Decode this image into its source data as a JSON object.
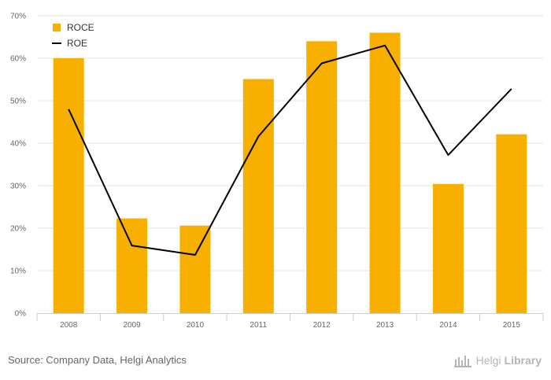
{
  "colors": {
    "bar": "#F7B000",
    "line": "#000000",
    "grid": "#e6e6e6",
    "axis": "#cccccc"
  },
  "chart_data": {
    "type": "bar",
    "categories": [
      "2008",
      "2009",
      "2010",
      "2011",
      "2012",
      "2013",
      "2014",
      "2015"
    ],
    "series": [
      {
        "name": "ROCE",
        "type": "bar",
        "values": [
          60,
          22.3,
          20.6,
          55.1,
          64,
          66,
          30.4,
          42.1
        ]
      },
      {
        "name": "ROE",
        "type": "line",
        "values": [
          48,
          15.9,
          13.7,
          41.6,
          58.8,
          63,
          37.2,
          52.8
        ]
      }
    ],
    "ylim": [
      0,
      70
    ],
    "yticks": [
      "0%",
      "10%",
      "20%",
      "30%",
      "40%",
      "50%",
      "60%",
      "70%"
    ],
    "grid": true,
    "legend_position": "top-left"
  },
  "source": "Source: Company Data, Helgi Analytics",
  "logo": {
    "name": "helgi-library-logo",
    "text_regular": "Helgi",
    "text_bold": "Library"
  }
}
